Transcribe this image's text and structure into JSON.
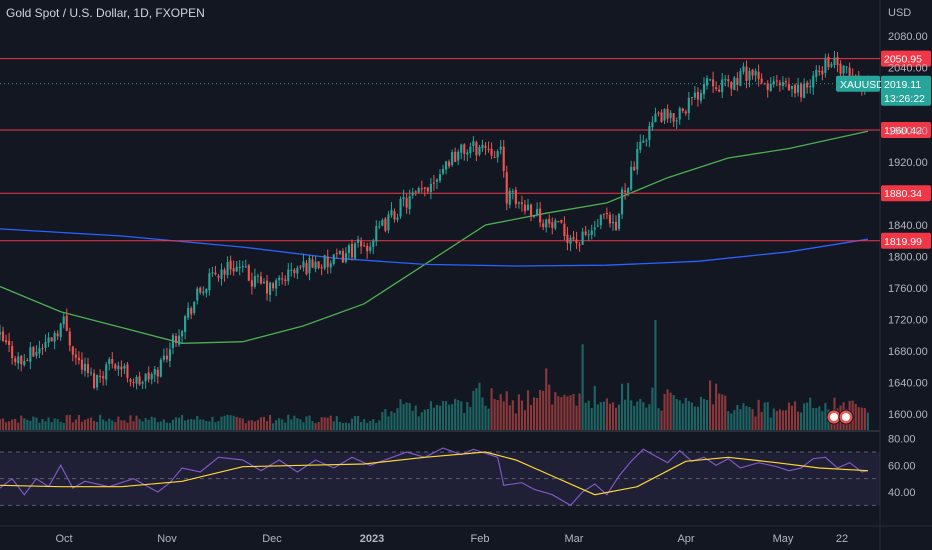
{
  "header": {
    "title": "Gold Spot / U.S. Dollar, 1D, FXOPEN",
    "currency": "USD"
  },
  "colors": {
    "background": "#131722",
    "up": "#26a69a",
    "down": "#ef5350",
    "level_line": "#f23645",
    "ma_fast": "#4caf50",
    "ma_slow": "#2962ff",
    "rsi": "#7e57c2",
    "rsi_ma": "#fdd835",
    "axis_text": "#b2b5be"
  },
  "chart_data": [
    {
      "type": "candlestick",
      "symbol": "XAUUSD",
      "title": "Gold Spot / U.S. Dollar, 1D, FXOPEN",
      "y_axis": {
        "unit": "USD",
        "ylim": [
          1580,
          2100
        ],
        "ticks": [
          "2080.00",
          "2040.00",
          "1960.00",
          "1920.00",
          "1840.00",
          "1800.00",
          "1760.00",
          "1720.00",
          "1680.00",
          "1640.00",
          "1600.00"
        ]
      },
      "x_axis": {
        "ticks": [
          "Oct",
          "Nov",
          "Dec",
          "2023",
          "Feb",
          "Mar",
          "Apr",
          "May",
          "22"
        ]
      },
      "horizontal_levels": [
        "2050.95",
        "1960.42",
        "1880.34",
        "1819.99"
      ],
      "last_price": {
        "symbol": "XAUUSD",
        "value": "2019.11",
        "countdown": "13:26:22"
      },
      "price_path": [
        [
          0,
          1700
        ],
        [
          8,
          1665
        ],
        [
          16,
          1690
        ],
        [
          22,
          1718
        ],
        [
          26,
          1672
        ],
        [
          32,
          1642
        ],
        [
          38,
          1670
        ],
        [
          46,
          1640
        ],
        [
          52,
          1650
        ],
        [
          60,
          1708
        ],
        [
          66,
          1750
        ],
        [
          72,
          1778
        ],
        [
          78,
          1790
        ],
        [
          84,
          1770
        ],
        [
          90,
          1758
        ],
        [
          96,
          1778
        ],
        [
          104,
          1792
        ],
        [
          110,
          1790
        ],
        [
          116,
          1808
        ],
        [
          122,
          1814
        ],
        [
          128,
          1842
        ],
        [
          134,
          1868
        ],
        [
          140,
          1880
        ],
        [
          146,
          1910
        ],
        [
          150,
          1928
        ],
        [
          154,
          1935
        ],
        [
          158,
          1938
        ],
        [
          162,
          1940
        ],
        [
          166,
          1930
        ],
        [
          168,
          1878
        ],
        [
          172,
          1868
        ],
        [
          176,
          1862
        ],
        [
          182,
          1840
        ],
        [
          188,
          1828
        ],
        [
          192,
          1818
        ],
        [
          196,
          1832
        ],
        [
          200,
          1848
        ],
        [
          204,
          1830
        ],
        [
          206,
          1880
        ],
        [
          210,
          1915
        ],
        [
          214,
          1958
        ],
        [
          218,
          1980
        ],
        [
          222,
          1972
        ],
        [
          226,
          1990
        ],
        [
          230,
          2000
        ],
        [
          234,
          2030
        ],
        [
          240,
          2015
        ],
        [
          244,
          2025
        ],
        [
          248,
          2036
        ],
        [
          252,
          2015
        ],
        [
          256,
          2018
        ],
        [
          260,
          2012
        ],
        [
          264,
          2010
        ],
        [
          268,
          2018
        ],
        [
          272,
          2040
        ],
        [
          274,
          2050
        ],
        [
          278,
          2036
        ],
        [
          282,
          2025
        ],
        [
          286,
          2019
        ]
      ],
      "moving_averages": [
        {
          "period_role": "fast",
          "values": [
            [
              0,
              1762
            ],
            [
              20,
              1730
            ],
            [
              40,
              1710
            ],
            [
              60,
              1690
            ],
            [
              80,
              1692
            ],
            [
              100,
              1712
            ],
            [
              120,
              1740
            ],
            [
              140,
              1790
            ],
            [
              160,
              1840
            ],
            [
              180,
              1855
            ],
            [
              200,
              1868
            ],
            [
              220,
              1900
            ],
            [
              240,
              1925
            ],
            [
              260,
              1937
            ],
            [
              286,
              1959
            ]
          ]
        },
        {
          "period_role": "slow",
          "values": [
            [
              0,
              1835
            ],
            [
              40,
              1826
            ],
            [
              80,
              1812
            ],
            [
              110,
              1798
            ],
            [
              140,
              1790
            ],
            [
              170,
              1788
            ],
            [
              200,
              1789
            ],
            [
              230,
              1794
            ],
            [
              260,
              1806
            ],
            [
              286,
              1822
            ]
          ]
        }
      ],
      "volume_spikes": [
        {
          "t": 132,
          "rel": 0.28
        },
        {
          "t": 158,
          "rel": 0.43
        },
        {
          "t": 162,
          "rel": 0.38
        },
        {
          "t": 180,
          "rel": 0.56
        },
        {
          "t": 192,
          "rel": 0.78
        },
        {
          "t": 205,
          "rel": 0.42
        },
        {
          "t": 216,
          "rel": 1.0
        },
        {
          "t": 252,
          "rel": 0.25
        },
        {
          "t": 268,
          "rel": 0.2
        }
      ]
    },
    {
      "type": "line",
      "name": "RSI",
      "y_axis": {
        "ylim": [
          25,
          85
        ],
        "ticks": [
          "80.00",
          "60.00",
          "40.00"
        ],
        "bands": [
          70,
          30
        ]
      },
      "series": [
        {
          "role": "rsi",
          "values": [
            [
              0,
              43
            ],
            [
              4,
              50
            ],
            [
              8,
              38
            ],
            [
              12,
              50
            ],
            [
              16,
              44
            ],
            [
              20,
              60
            ],
            [
              24,
              43
            ],
            [
              28,
              48
            ],
            [
              36,
              44
            ],
            [
              44,
              50
            ],
            [
              52,
              40
            ],
            [
              56,
              47
            ],
            [
              60,
              58
            ],
            [
              66,
              55
            ],
            [
              72,
              66
            ],
            [
              80,
              64
            ],
            [
              86,
              56
            ],
            [
              92,
              64
            ],
            [
              98,
              55
            ],
            [
              104,
              64
            ],
            [
              110,
              58
            ],
            [
              116,
              66
            ],
            [
              122,
              60
            ],
            [
              128,
              65
            ],
            [
              134,
              70
            ],
            [
              140,
              66
            ],
            [
              146,
              73
            ],
            [
              152,
              68
            ],
            [
              156,
              72
            ],
            [
              160,
              69
            ],
            [
              164,
              66
            ],
            [
              166,
              45
            ],
            [
              172,
              47
            ],
            [
              176,
              42
            ],
            [
              182,
              38
            ],
            [
              188,
              30
            ],
            [
              192,
              40
            ],
            [
              196,
              46
            ],
            [
              200,
              38
            ],
            [
              204,
              52
            ],
            [
              208,
              63
            ],
            [
              212,
              72
            ],
            [
              216,
              67
            ],
            [
              220,
              62
            ],
            [
              224,
              71
            ],
            [
              228,
              63
            ],
            [
              232,
              66
            ],
            [
              236,
              60
            ],
            [
              240,
              65
            ],
            [
              244,
              58
            ],
            [
              250,
              62
            ],
            [
              256,
              59
            ],
            [
              260,
              56
            ],
            [
              264,
              58
            ],
            [
              268,
              65
            ],
            [
              272,
              66
            ],
            [
              276,
              58
            ],
            [
              280,
              62
            ],
            [
              284,
              55
            ],
            [
              286,
              56
            ]
          ]
        },
        {
          "role": "rsi_ma",
          "values": [
            [
              0,
              45
            ],
            [
              20,
              44
            ],
            [
              40,
              44
            ],
            [
              60,
              48
            ],
            [
              80,
              59
            ],
            [
              100,
              60
            ],
            [
              120,
              61
            ],
            [
              140,
              66
            ],
            [
              160,
              70
            ],
            [
              170,
              64
            ],
            [
              182,
              52
            ],
            [
              196,
              38
            ],
            [
              210,
              44
            ],
            [
              226,
              63
            ],
            [
              240,
              66
            ],
            [
              256,
              62
            ],
            [
              270,
              58
            ],
            [
              286,
              56
            ]
          ]
        }
      ]
    }
  ]
}
